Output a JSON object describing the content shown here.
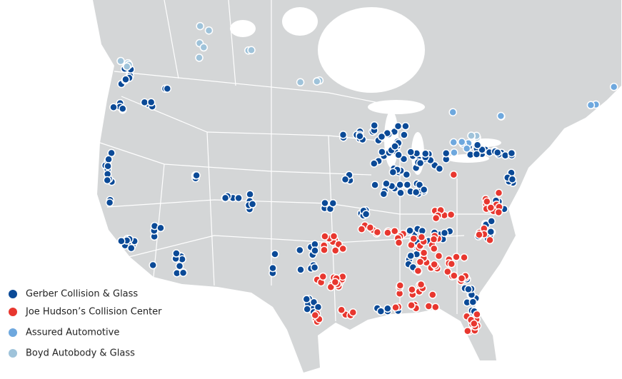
{
  "legend": [
    {
      "name": "Gerber Collision & Glass",
      "color": "#0b4a97"
    },
    {
      "name": "Joe Hudson’s Collision Center",
      "color": "#e8372f"
    },
    {
      "name": "Assured Automotive",
      "color": "#6ea8de"
    },
    {
      "name": "Boyd Autobody & Glass",
      "color": "#9fc3da"
    }
  ]
}
